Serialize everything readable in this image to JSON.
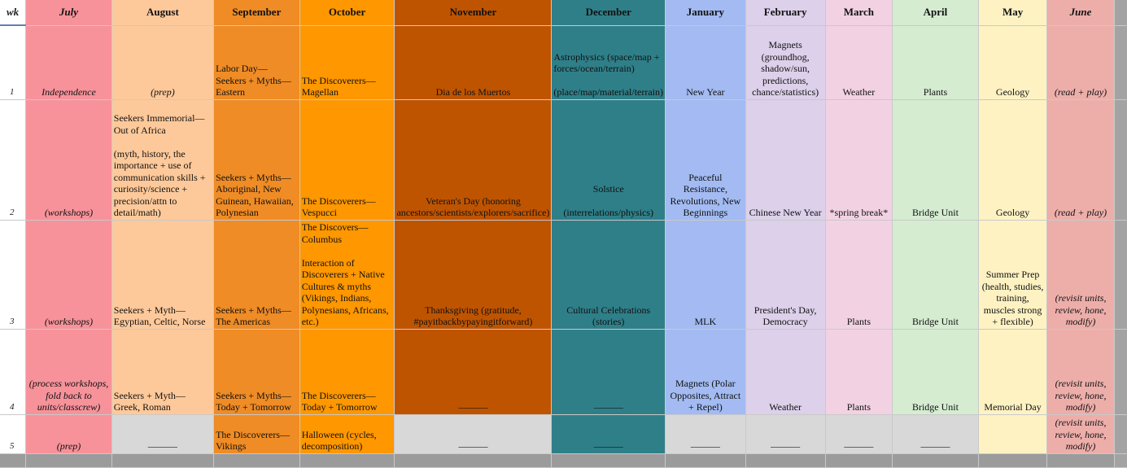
{
  "headers": {
    "wk": "wk",
    "jul": "July",
    "aug": "August",
    "sep": "September",
    "oct": "October",
    "nov": "November",
    "dec": "December",
    "jan": "January",
    "feb": "February",
    "mar": "March",
    "apr": "April",
    "may": "May",
    "jun": "June"
  },
  "weeks": [
    {
      "wk": "1",
      "jul": "Independence",
      "aug": "(prep)",
      "sep": "Labor Day—Seekers + Myths—Eastern",
      "oct": "The Discoverers—Magellan",
      "nov": "Dia de los Muertos",
      "dec": "Astrophysics (space/map + forces/ocean/terrain)\n\n(place/map/material/terrain)",
      "jan": "New Year",
      "feb": "Magnets (groundhog, shadow/sun, predictions, chance/statistics)",
      "mar": "Weather",
      "apr": "Plants",
      "may": "Geology",
      "jun": "(read + play)"
    },
    {
      "wk": "2",
      "jul": "(workshops)",
      "aug": "Seekers Immemorial—Out of Africa\n\n(myth, history, the importance + use of communication skills + curiosity/science + precision/attn to detail/math)",
      "sep": "Seekers + Myths—Aboriginal, New Guinean, Hawaiian, Polynesian",
      "oct": "The Discoverers—Vespucci",
      "nov": "Veteran's Day (honoring ancestors/scientists/explorers/sacrifice)",
      "dec": "Solstice\n\n(interrelations/physics)",
      "jan": "Peaceful Resistance, Revolutions, New Beginnings",
      "feb": "Chinese New Year",
      "mar": "*spring break*",
      "apr": "Bridge Unit",
      "may": "Geology",
      "jun": "(read + play)"
    },
    {
      "wk": "3",
      "jul": "(workshops)",
      "aug": "Seekers + Myth—Egyptian, Celtic, Norse",
      "sep": "Seekers + Myths—The Americas",
      "oct": "The Discovers—Columbus\n\nInteraction of Discoverers + Native Cultures & myths (Vikings, Indians, Polynesians, Africans, etc.)",
      "nov": "Thanksgiving (gratitude, #payitbackbypayingitforward)",
      "dec": "Cultural Celebrations (stories)",
      "jan": "MLK",
      "feb": "President's Day, Democracy",
      "mar": "Plants",
      "apr": "Bridge Unit",
      "may": "Summer Prep (health, studies, training, muscles strong + flexible)",
      "jun": "(revisit units, review, hone, modify)"
    },
    {
      "wk": "4",
      "jul": "(process workshops, fold back to units/classcrew)",
      "aug": "Seekers + Myth—Greek, Roman",
      "sep": "Seekers + Myths—Today + Tomorrow",
      "oct": "The Discoverers—Today + Tomorrow",
      "nov": "———",
      "dec": "———",
      "jan": "Magnets (Polar Opposites, Attract + Repel)",
      "feb": "Weather",
      "mar": "Plants",
      "apr": "Bridge Unit",
      "may": "Memorial Day",
      "jun": "(revisit units, review, hone, modify)"
    },
    {
      "wk": "5",
      "jul": "(prep)",
      "aug": "———",
      "sep": "The Discoverers—Vikings",
      "oct": "Halloween (cycles, decomposition)",
      "nov": "———",
      "dec": "———",
      "jan": "———",
      "feb": "———",
      "mar": "———",
      "apr": "———",
      "may": "",
      "jun": "(revisit units, review, hone, modify)"
    }
  ],
  "colors": {
    "july": "#f7929a",
    "august": "#fec99a",
    "september": "#ef8c26",
    "october": "#fe9700",
    "november": "#bf5400",
    "december": "#2f7f89",
    "january": "#a3bbf2",
    "february": "#dcd0ea",
    "march": "#f2d2e2",
    "april": "#d5ecd1",
    "may": "#fef2c3",
    "june": "#edaeaa",
    "empty": "#d8d8d8"
  }
}
